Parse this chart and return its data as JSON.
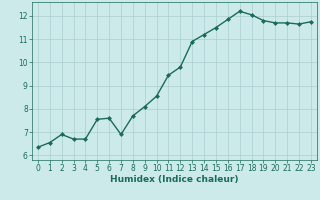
{
  "x": [
    0,
    1,
    2,
    3,
    4,
    5,
    6,
    7,
    8,
    9,
    10,
    11,
    12,
    13,
    14,
    15,
    16,
    17,
    18,
    19,
    20,
    21,
    22,
    23
  ],
  "y": [
    6.35,
    6.55,
    6.9,
    6.7,
    6.7,
    7.55,
    7.6,
    6.9,
    7.7,
    8.1,
    8.55,
    9.45,
    9.8,
    10.9,
    11.2,
    11.5,
    11.85,
    12.2,
    12.05,
    11.8,
    11.7,
    11.7,
    11.65,
    11.75
  ],
  "line_color": "#1a6b5a",
  "marker": "D",
  "marker_size": 2.0,
  "bg_color": "#cceaea",
  "grid_color": "#aacece",
  "xlabel": "Humidex (Indice chaleur)",
  "xlim": [
    -0.5,
    23.5
  ],
  "ylim": [
    5.8,
    12.6
  ],
  "yticks": [
    6,
    7,
    8,
    9,
    10,
    11,
    12
  ],
  "xticks": [
    0,
    1,
    2,
    3,
    4,
    5,
    6,
    7,
    8,
    9,
    10,
    11,
    12,
    13,
    14,
    15,
    16,
    17,
    18,
    19,
    20,
    21,
    22,
    23
  ],
  "tick_label_size": 5.5,
  "xlabel_size": 6.5,
  "line_width": 1.0
}
